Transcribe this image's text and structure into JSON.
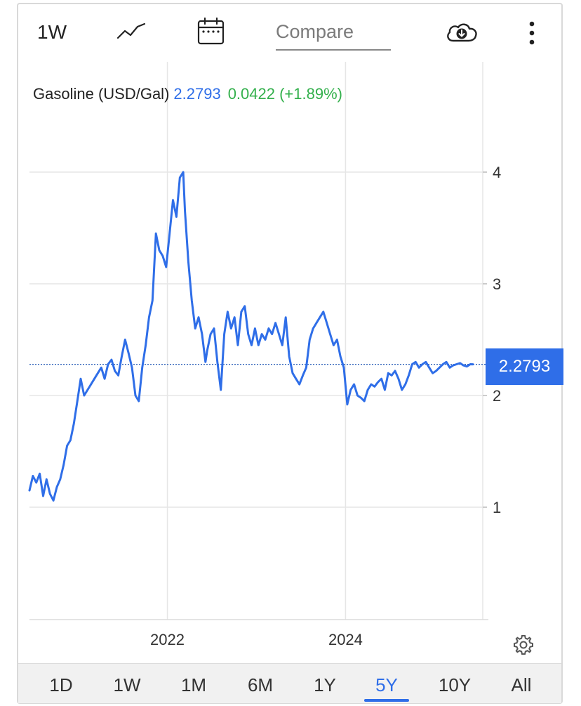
{
  "toolbar": {
    "interval_label": "1W",
    "compare_placeholder": "Compare",
    "icons": [
      "line-chart-icon",
      "calendar-icon",
      "cloud-download-icon",
      "more-vertical-icon"
    ]
  },
  "legend": {
    "name": "Gasoline (USD/Gal)",
    "value": "2.2793",
    "change": "0.0422 (+1.89%)",
    "value_color": "#2f6ee8",
    "change_color": "#33b04c"
  },
  "price_tag": "2.2793",
  "colors": {
    "line": "#2f6ee8",
    "grid": "#e6e6e6",
    "accent": "#2f6ee8"
  },
  "ranges": {
    "items": [
      "1D",
      "1W",
      "1M",
      "6M",
      "1Y",
      "5Y",
      "10Y",
      "All"
    ],
    "active": "5Y"
  },
  "chart_data": {
    "type": "line",
    "title": "",
    "xlabel": "",
    "ylabel": "",
    "x_ticks": [
      "2022",
      "2024"
    ],
    "y_ticks": [
      1,
      2,
      3,
      4
    ],
    "xlim": [
      "2020-06-15",
      "2025-06-06"
    ],
    "ylim": [
      0,
      4.8
    ],
    "grid": true,
    "last_value_line": 2.2793,
    "series": [
      {
        "name": "Gasoline (USD/Gal)",
        "x": [
          "2020-06-15",
          "2020-06-29",
          "2020-07-13",
          "2020-07-27",
          "2020-08-10",
          "2020-08-24",
          "2020-09-07",
          "2020-09-21",
          "2020-10-05",
          "2020-10-19",
          "2020-11-02",
          "2020-11-16",
          "2020-11-30",
          "2020-12-14",
          "2020-12-28",
          "2021-01-11",
          "2021-01-25",
          "2021-02-08",
          "2021-02-22",
          "2021-03-08",
          "2021-03-22",
          "2021-04-05",
          "2021-04-19",
          "2021-05-03",
          "2021-05-17",
          "2021-05-31",
          "2021-06-14",
          "2021-06-28",
          "2021-07-12",
          "2021-07-26",
          "2021-08-09",
          "2021-08-23",
          "2021-09-06",
          "2021-09-20",
          "2021-10-04",
          "2021-10-18",
          "2021-11-01",
          "2021-11-15",
          "2021-11-29",
          "2021-12-13",
          "2021-12-27",
          "2022-01-10",
          "2022-01-24",
          "2022-02-07",
          "2022-02-21",
          "2022-03-07",
          "2022-03-14",
          "2022-03-28",
          "2022-04-11",
          "2022-04-25",
          "2022-05-09",
          "2022-05-23",
          "2022-06-06",
          "2022-06-13",
          "2022-06-27",
          "2022-07-11",
          "2022-07-25",
          "2022-08-08",
          "2022-08-22",
          "2022-09-05",
          "2022-09-19",
          "2022-10-03",
          "2022-10-17",
          "2022-10-31",
          "2022-11-14",
          "2022-11-28",
          "2022-12-12",
          "2022-12-26",
          "2023-01-09",
          "2023-01-23",
          "2023-02-06",
          "2023-02-20",
          "2023-03-06",
          "2023-03-20",
          "2023-04-03",
          "2023-04-17",
          "2023-05-01",
          "2023-05-15",
          "2023-05-29",
          "2023-06-12",
          "2023-06-26",
          "2023-07-10",
          "2023-07-24",
          "2023-08-07",
          "2023-08-21",
          "2023-09-04",
          "2023-09-18",
          "2023-10-02",
          "2023-10-16",
          "2023-10-30",
          "2023-11-13",
          "2023-11-27",
          "2023-12-11",
          "2023-12-25",
          "2024-01-08",
          "2024-01-22",
          "2024-02-05",
          "2024-02-19",
          "2024-03-04",
          "2024-03-18",
          "2024-04-01",
          "2024-04-15",
          "2024-04-29",
          "2024-05-13",
          "2024-05-27",
          "2024-06-10",
          "2024-06-24",
          "2024-07-08",
          "2024-07-22",
          "2024-08-05",
          "2024-08-19",
          "2024-09-02",
          "2024-09-16",
          "2024-09-30",
          "2024-10-14",
          "2024-10-28",
          "2024-11-11",
          "2024-11-25",
          "2024-12-09",
          "2024-12-23",
          "2025-01-06",
          "2025-01-20",
          "2025-02-03",
          "2025-02-17",
          "2025-03-03",
          "2025-03-17",
          "2025-03-31",
          "2025-04-14",
          "2025-04-28",
          "2025-05-12",
          "2025-05-26",
          "2025-06-06"
        ],
        "y": [
          1.15,
          1.28,
          1.22,
          1.3,
          1.1,
          1.25,
          1.12,
          1.06,
          1.18,
          1.25,
          1.38,
          1.55,
          1.6,
          1.75,
          1.95,
          2.15,
          2.0,
          2.05,
          2.1,
          2.15,
          2.2,
          2.25,
          2.15,
          2.28,
          2.32,
          2.22,
          2.18,
          2.35,
          2.5,
          2.38,
          2.25,
          2.0,
          1.95,
          2.25,
          2.45,
          2.7,
          2.85,
          3.45,
          3.3,
          3.25,
          3.15,
          3.45,
          3.75,
          3.6,
          3.95,
          4.0,
          3.65,
          3.2,
          2.85,
          2.6,
          2.7,
          2.55,
          2.3,
          2.4,
          2.55,
          2.6,
          2.3,
          2.05,
          2.55,
          2.75,
          2.6,
          2.7,
          2.45,
          2.75,
          2.8,
          2.55,
          2.45,
          2.6,
          2.45,
          2.55,
          2.5,
          2.6,
          2.55,
          2.65,
          2.55,
          2.45,
          2.7,
          2.35,
          2.2,
          2.15,
          2.1,
          2.18,
          2.25,
          2.5,
          2.6,
          2.65,
          2.7,
          2.75,
          2.65,
          2.55,
          2.45,
          2.5,
          2.35,
          2.25,
          1.92,
          2.05,
          2.1,
          2.0,
          1.98,
          1.95,
          2.05,
          2.1,
          2.08,
          2.12,
          2.15,
          2.05,
          2.2,
          2.18,
          2.22,
          2.15,
          2.05,
          2.1,
          2.18,
          2.28,
          2.3,
          2.25,
          2.28,
          2.3,
          2.25,
          2.2,
          2.22,
          2.25,
          2.28,
          2.3,
          2.25,
          2.27,
          2.28,
          2.29,
          2.27,
          2.26,
          2.28,
          2.2793
        ]
      }
    ]
  }
}
